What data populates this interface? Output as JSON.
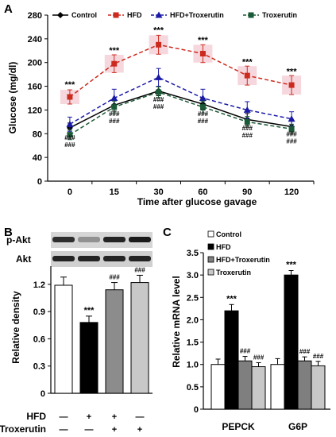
{
  "figure": {
    "panels": [
      "A",
      "B",
      "C"
    ]
  },
  "chart_data": [
    {
      "panel": "A",
      "type": "line",
      "xlabel": "Time after glucose gavage",
      "ylabel": "Glucose (mg/dl)",
      "categories": [
        "0",
        "15",
        "30",
        "60",
        "90",
        "120"
      ],
      "ylim": [
        0,
        280
      ],
      "yticks": [
        0,
        40,
        80,
        120,
        160,
        200,
        240,
        280
      ],
      "grid": false,
      "legend_position": "top",
      "series": [
        {
          "name": "Control",
          "color": "#000000",
          "marker": "diamond",
          "dash": "solid",
          "values": [
            90,
            128,
            152,
            130,
            104,
            92
          ],
          "errors": [
            8,
            10,
            8,
            10,
            10,
            9
          ]
        },
        {
          "name": "HFD",
          "color": "#cc2a1e",
          "marker": "square",
          "dash": "dashed",
          "values": [
            142,
            198,
            230,
            215,
            178,
            162
          ],
          "errors": [
            12,
            15,
            16,
            15,
            16,
            16
          ]
        },
        {
          "name": "HFD+Troxerutin",
          "color": "#1a1aa6",
          "marker": "triangle",
          "dash": "dashed",
          "values": [
            96,
            140,
            175,
            140,
            120,
            105
          ],
          "errors": [
            12,
            15,
            15,
            15,
            14,
            12
          ]
        },
        {
          "name": "Troxerutin",
          "color": "#1b5a36",
          "marker": "square",
          "dash": "dashed",
          "values": [
            78,
            125,
            150,
            125,
            100,
            88
          ],
          "errors": [
            8,
            10,
            9,
            10,
            9,
            8
          ]
        }
      ],
      "annotations": [
        {
          "category": "0",
          "label": "***",
          "above": 158
        },
        {
          "category": "15",
          "label": "***",
          "above": 216
        },
        {
          "category": "30",
          "label": "***",
          "above": 250
        },
        {
          "category": "60",
          "label": "***",
          "above": 233
        },
        {
          "category": "90",
          "label": "***",
          "above": 196
        },
        {
          "category": "120",
          "label": "***",
          "above": 180
        },
        {
          "category": "0",
          "label": "###",
          "below": 70
        },
        {
          "category": "15",
          "label": "###",
          "below": 110
        },
        {
          "category": "30",
          "label": "###",
          "below": 134
        },
        {
          "category": "60",
          "label": "###",
          "below": 110
        },
        {
          "category": "90",
          "label": "###",
          "below": 86
        },
        {
          "category": "120",
          "label": "###",
          "below": 76
        }
      ]
    },
    {
      "panel": "B",
      "type": "bar",
      "ylabel": "Relative density",
      "blot_labels": [
        "p-Akt",
        "Akt"
      ],
      "ylim": [
        0,
        1.4
      ],
      "yticks": [
        "0",
        "0.3",
        "0.6",
        "0.9",
        "1.2"
      ],
      "values": [
        1.19,
        0.78,
        1.14,
        1.22
      ],
      "errors": [
        0.09,
        0.07,
        0.08,
        0.08
      ],
      "bar_colors": [
        "#ffffff",
        "#000000",
        "#8c8c8c",
        "#c8c8c8"
      ],
      "significance": [
        "",
        "***",
        "###",
        "###"
      ],
      "conditions": {
        "rows": [
          {
            "label": "HFD",
            "values": [
              "—",
              "+",
              "+",
              "—"
            ]
          },
          {
            "label": "Troxerutin",
            "values": [
              "—",
              "—",
              "+",
              "+"
            ]
          }
        ]
      }
    },
    {
      "panel": "C",
      "type": "bar",
      "ylabel": "Relative mRNA level",
      "categories": [
        "PEPCK",
        "G6P"
      ],
      "ylim": [
        0,
        3.5
      ],
      "yticks": [
        "0",
        "0.5",
        "1.0",
        "1.5",
        "2.0",
        "2.5",
        "3.0",
        "3.5"
      ],
      "legend_position": "top-left",
      "series": [
        {
          "name": "Control",
          "color": "#ffffff",
          "values": [
            1.0,
            1.0
          ],
          "errors": [
            0.12,
            0.13
          ],
          "significance": [
            "",
            ""
          ]
        },
        {
          "name": "HFD",
          "color": "#000000",
          "values": [
            2.2,
            3.0
          ],
          "errors": [
            0.14,
            0.1
          ],
          "significance": [
            "***",
            "***"
          ]
        },
        {
          "name": "HFD+Troxerutin",
          "color": "#7f7f7f",
          "values": [
            1.08,
            1.08
          ],
          "errors": [
            0.1,
            0.09
          ],
          "significance": [
            "###",
            "###"
          ]
        },
        {
          "name": "Troxerutin",
          "color": "#c8c8c8",
          "values": [
            0.95,
            0.97
          ],
          "errors": [
            0.09,
            0.1
          ],
          "significance": [
            "###",
            "###"
          ]
        }
      ]
    }
  ]
}
